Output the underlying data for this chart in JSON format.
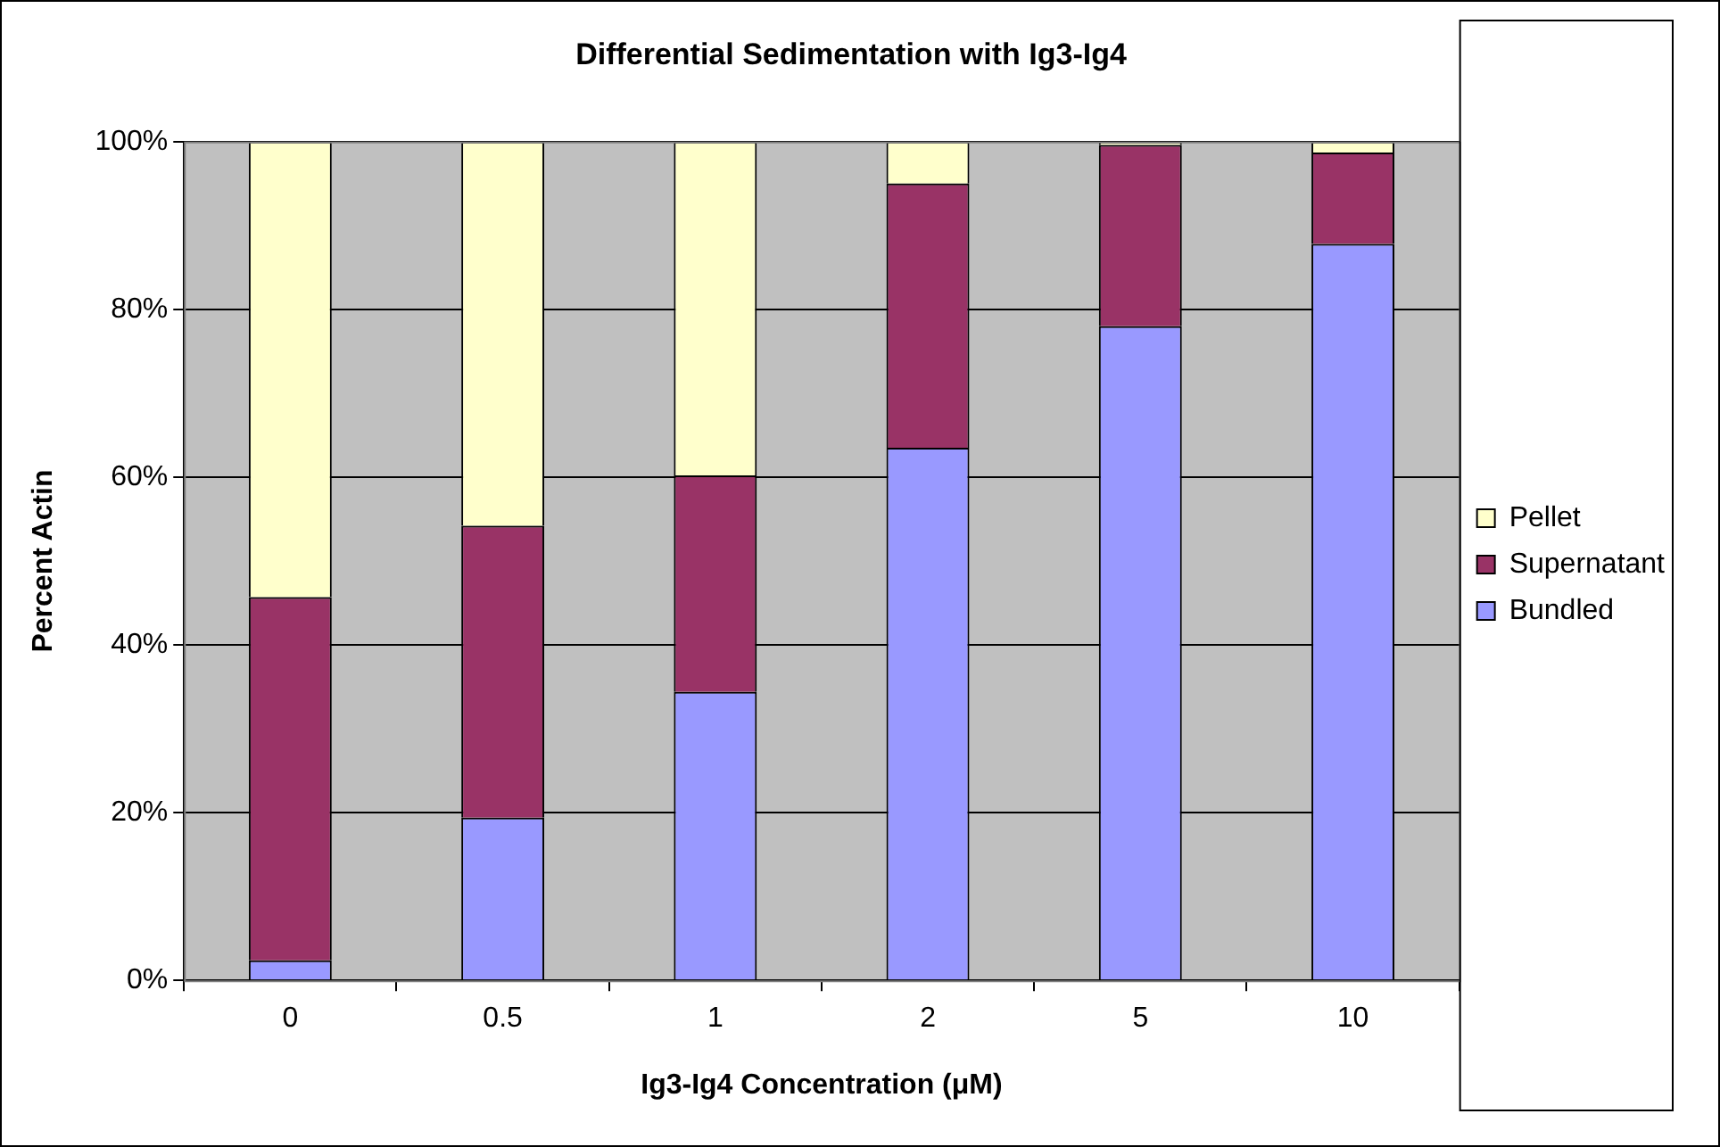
{
  "chart_data": {
    "type": "bar",
    "title": "Differential Sedimentation with Ig3-Ig4",
    "xlabel": "Ig3-Ig4 Concentration (μM)",
    "ylabel": "Percent Actin",
    "categories": [
      "0",
      "0.5",
      "1",
      "2",
      "5",
      "10"
    ],
    "stacked": true,
    "series": [
      {
        "name": "Bundled",
        "color": "#9999ff",
        "values": [
          2.4,
          19.4,
          34.4,
          63.5,
          78.0,
          87.8
        ]
      },
      {
        "name": "Supernatant",
        "color": "#993366",
        "values": [
          43.3,
          34.8,
          25.8,
          31.5,
          21.6,
          10.9
        ]
      },
      {
        "name": "Pellet",
        "color": "#ffffcc",
        "values": [
          54.3,
          45.8,
          39.8,
          5.0,
          0.4,
          1.3
        ]
      }
    ],
    "ylim": [
      0,
      100
    ],
    "yticks": [
      {
        "value": 0,
        "label": "0%"
      },
      {
        "value": 20,
        "label": "20%"
      },
      {
        "value": 40,
        "label": "40%"
      },
      {
        "value": 60,
        "label": "60%"
      },
      {
        "value": 80,
        "label": "80%"
      },
      {
        "value": 100,
        "label": "100%"
      }
    ],
    "grid": "y",
    "legend": "right"
  }
}
